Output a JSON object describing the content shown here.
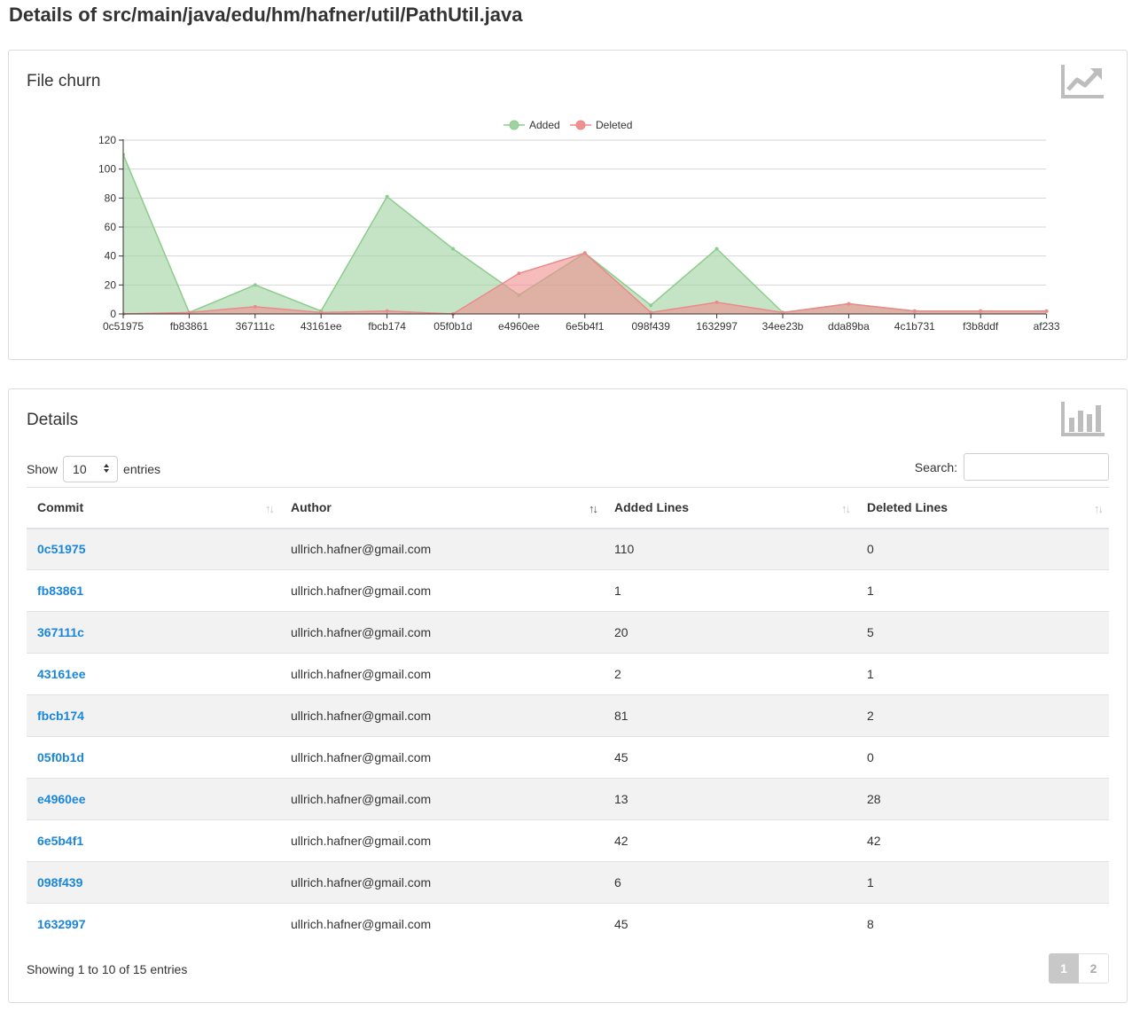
{
  "page": {
    "title": "Details of src/main/java/edu/hm/hafner/util/PathUtil.java"
  },
  "churn_card": {
    "title": "File churn",
    "icon": "line-chart-icon"
  },
  "details_card": {
    "title": "Details",
    "icon": "bar-chart-icon"
  },
  "colors": {
    "added": "#9fd29f",
    "added_line": "#8ccc8c",
    "deleted": "#f08f8f",
    "deleted_line": "#ea8a8a",
    "link": "#1a86d9"
  },
  "chart_data": {
    "type": "area",
    "categories": [
      "0c51975",
      "fb83861",
      "367111c",
      "43161ee",
      "fbcb174",
      "05f0b1d",
      "e4960ee",
      "6e5b4f1",
      "098f439",
      "1632997",
      "34ee23b",
      "dda89ba",
      "4c1b731",
      "f3b8ddf",
      "af233"
    ],
    "series": [
      {
        "name": "Added",
        "values": [
          110,
          1,
          20,
          2,
          81,
          45,
          13,
          42,
          6,
          45,
          1,
          7,
          2,
          2,
          2
        ]
      },
      {
        "name": "Deleted",
        "values": [
          0,
          1,
          5,
          1,
          2,
          0,
          28,
          42,
          1,
          8,
          1,
          7,
          2,
          2,
          2
        ]
      }
    ],
    "yticks": [
      "0",
      "20",
      "40",
      "60",
      "80",
      "100",
      "120"
    ],
    "ylim": [
      0,
      120
    ],
    "grid": true,
    "legend": "top-center"
  },
  "controls": {
    "show_label": "Show",
    "entries_label": "entries",
    "page_length": "10",
    "search_label": "Search:",
    "search_value": ""
  },
  "table": {
    "headers": [
      "Commit",
      "Author",
      "Added Lines",
      "Deleted Lines"
    ],
    "rows": [
      {
        "commit": "0c51975",
        "author": "ullrich.hafner@gmail.com",
        "added": "110",
        "deleted": "0"
      },
      {
        "commit": "fb83861",
        "author": "ullrich.hafner@gmail.com",
        "added": "1",
        "deleted": "1"
      },
      {
        "commit": "367111c",
        "author": "ullrich.hafner@gmail.com",
        "added": "20",
        "deleted": "5"
      },
      {
        "commit": "43161ee",
        "author": "ullrich.hafner@gmail.com",
        "added": "2",
        "deleted": "1"
      },
      {
        "commit": "fbcb174",
        "author": "ullrich.hafner@gmail.com",
        "added": "81",
        "deleted": "2"
      },
      {
        "commit": "05f0b1d",
        "author": "ullrich.hafner@gmail.com",
        "added": "45",
        "deleted": "0"
      },
      {
        "commit": "e4960ee",
        "author": "ullrich.hafner@gmail.com",
        "added": "13",
        "deleted": "28"
      },
      {
        "commit": "6e5b4f1",
        "author": "ullrich.hafner@gmail.com",
        "added": "42",
        "deleted": "42"
      },
      {
        "commit": "098f439",
        "author": "ullrich.hafner@gmail.com",
        "added": "6",
        "deleted": "1"
      },
      {
        "commit": "1632997",
        "author": "ullrich.hafner@gmail.com",
        "added": "45",
        "deleted": "8"
      }
    ]
  },
  "footer": {
    "info": "Showing 1 to 10 of 15 entries",
    "pages": [
      "1",
      "2"
    ]
  }
}
